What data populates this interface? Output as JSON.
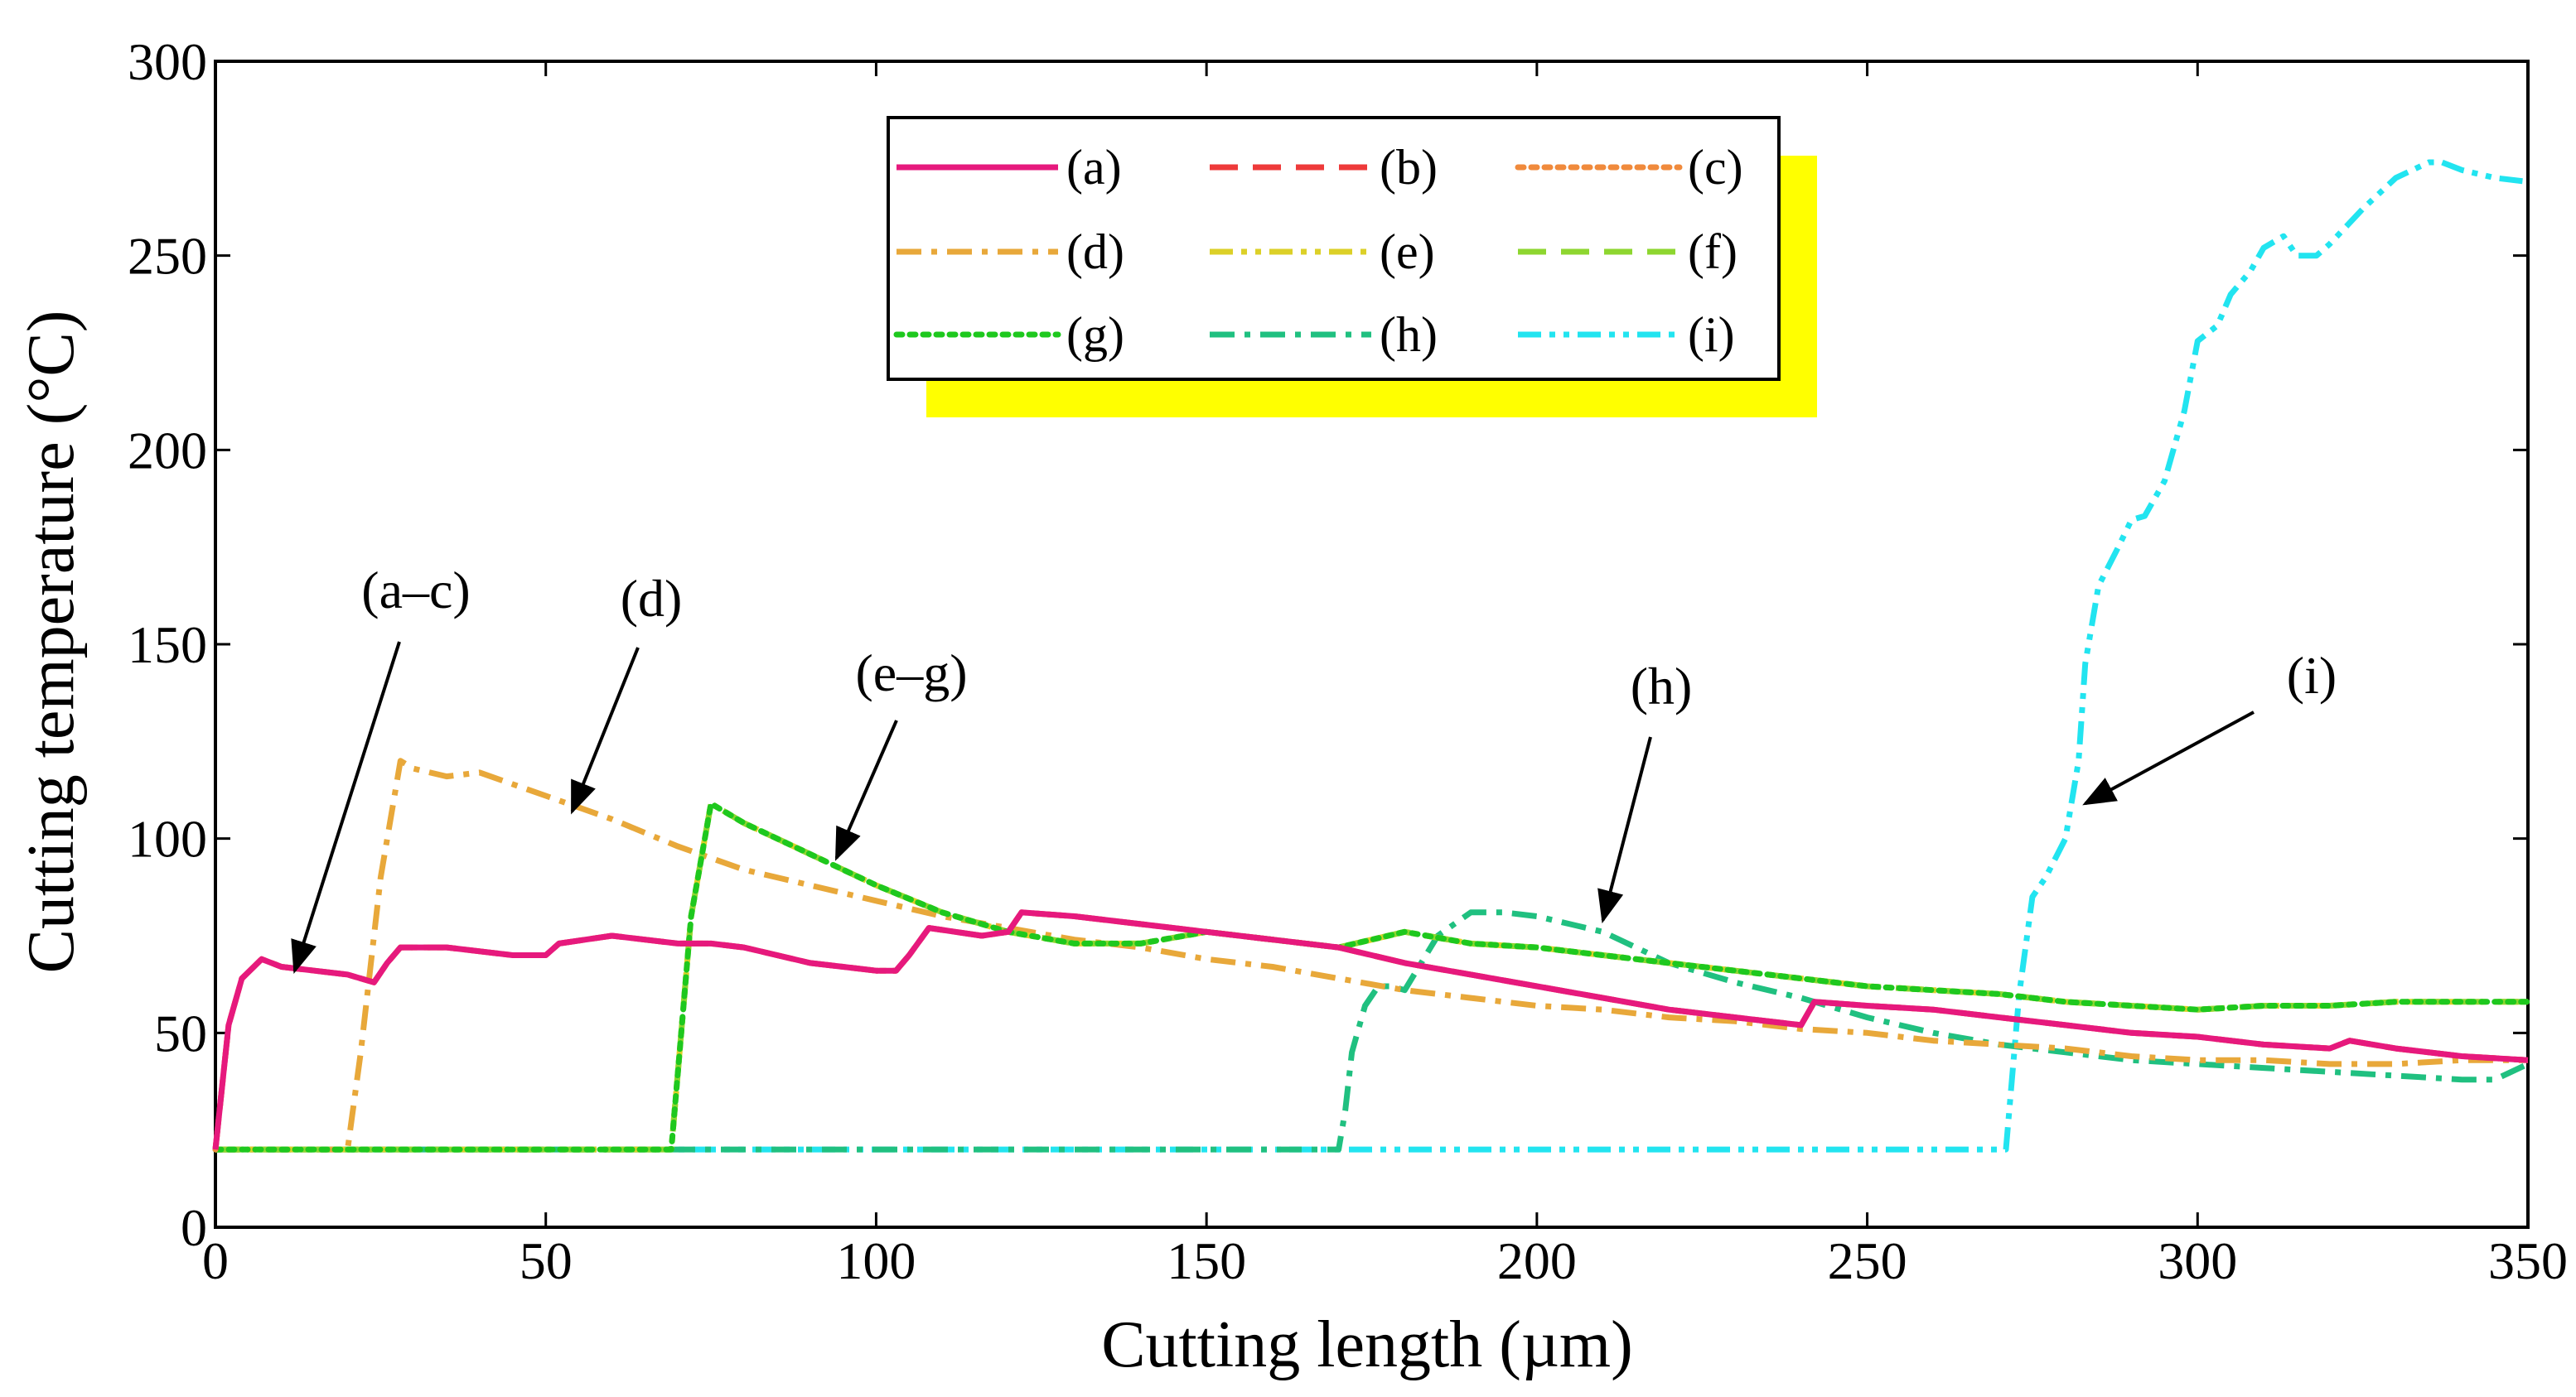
{
  "chart_data": {
    "type": "line",
    "title": "",
    "xlabel": "Cutting length (µm)",
    "ylabel": "Cutting temperature (°C)",
    "xlim": [
      0,
      350
    ],
    "ylim": [
      0,
      300
    ],
    "xticks": [
      "0",
      "50",
      "100",
      "150",
      "200",
      "250",
      "300",
      "350"
    ],
    "yticks": [
      "0",
      "50",
      "100",
      "150",
      "200",
      "250",
      "300"
    ],
    "grid": false,
    "legend_position": "top-center",
    "series": [
      {
        "name": "(a)",
        "color": "#e6197d",
        "style": "solid",
        "x": [
          0,
          2,
          4,
          7,
          10,
          15,
          20,
          24,
          26,
          28,
          35,
          40,
          45,
          50,
          52,
          56,
          60,
          65,
          70,
          75,
          80,
          85,
          90,
          95,
          100,
          103,
          105,
          108,
          112,
          116,
          120,
          122,
          130,
          140,
          150,
          160,
          170,
          180,
          190,
          200,
          210,
          220,
          230,
          240,
          242,
          250,
          260,
          270,
          280,
          290,
          300,
          310,
          320,
          323,
          330,
          340,
          350
        ],
        "y": [
          20,
          52,
          64,
          69,
          67,
          66,
          65,
          63,
          68,
          72,
          72,
          71,
          70,
          70,
          73,
          74,
          75,
          74,
          73,
          73,
          72,
          70,
          68,
          67,
          66,
          66,
          70,
          77,
          76,
          75,
          76,
          81,
          80,
          78,
          76,
          74,
          72,
          68,
          65,
          62,
          59,
          56,
          54,
          52,
          58,
          57,
          56,
          54,
          52,
          50,
          49,
          47,
          46,
          48,
          46,
          44,
          43
        ]
      },
      {
        "name": "(b)",
        "color": "#ee3a3a",
        "style": "dash",
        "x": [
          0,
          2,
          4,
          7,
          10,
          15,
          20,
          24,
          26,
          28,
          35,
          40,
          45,
          50,
          52,
          56,
          60,
          65,
          70,
          75,
          80,
          85,
          90,
          95,
          100,
          103,
          105,
          108,
          112,
          116,
          120,
          122,
          130,
          140,
          150,
          160,
          170,
          180,
          190,
          200,
          210,
          220,
          230,
          240,
          242,
          250,
          260,
          270,
          280,
          290,
          300,
          310,
          320,
          323,
          330,
          340,
          350
        ],
        "y": [
          20,
          52,
          64,
          69,
          67,
          66,
          65,
          63,
          68,
          72,
          72,
          71,
          70,
          70,
          73,
          74,
          75,
          74,
          73,
          73,
          72,
          70,
          68,
          67,
          66,
          66,
          70,
          77,
          76,
          75,
          76,
          81,
          80,
          78,
          76,
          74,
          72,
          68,
          65,
          62,
          59,
          56,
          54,
          52,
          58,
          57,
          56,
          54,
          52,
          50,
          49,
          47,
          46,
          48,
          46,
          44,
          43
        ]
      },
      {
        "name": "(c)",
        "color": "#f08a3c",
        "style": "dot",
        "x": [
          0,
          2,
          4,
          7,
          10,
          15,
          20,
          24,
          26,
          28,
          35,
          40,
          45,
          50,
          52,
          56,
          60,
          65,
          70,
          75,
          80,
          85,
          90,
          95,
          100,
          103,
          105,
          108,
          112,
          116,
          120,
          122,
          130,
          140,
          150,
          160,
          170,
          180,
          190,
          200,
          210,
          220,
          230,
          240,
          242,
          250,
          260,
          270,
          280,
          290,
          300,
          310,
          320,
          323,
          330,
          340,
          350
        ],
        "y": [
          20,
          52,
          64,
          69,
          67,
          66,
          65,
          63,
          68,
          72,
          72,
          71,
          70,
          70,
          73,
          74,
          75,
          74,
          73,
          73,
          72,
          70,
          68,
          67,
          66,
          66,
          70,
          77,
          76,
          75,
          76,
          81,
          80,
          78,
          76,
          74,
          72,
          68,
          65,
          62,
          59,
          56,
          54,
          52,
          58,
          57,
          56,
          54,
          52,
          50,
          49,
          47,
          46,
          48,
          46,
          44,
          43
        ]
      },
      {
        "name": "(d)",
        "color": "#e8a83a",
        "style": "dashdot",
        "x": [
          0,
          20,
          22,
          25,
          28,
          30,
          35,
          40,
          45,
          50,
          55,
          60,
          70,
          80,
          90,
          100,
          110,
          120,
          130,
          140,
          150,
          160,
          170,
          180,
          190,
          200,
          210,
          220,
          230,
          240,
          250,
          260,
          270,
          280,
          290,
          300,
          310,
          320,
          330,
          340,
          350
        ],
        "y": [
          20,
          20,
          45,
          90,
          120,
          118,
          116,
          117,
          114,
          111,
          108,
          105,
          98,
          92,
          88,
          84,
          80,
          77,
          74,
          72,
          69,
          67,
          64,
          61,
          59,
          57,
          56,
          54,
          53,
          51,
          50,
          48,
          47,
          46,
          44,
          43,
          43,
          42,
          42,
          43,
          43
        ]
      },
      {
        "name": "(e)",
        "color": "#dcd028",
        "style": "dashdotdot",
        "x": [
          0,
          69,
          70,
          72,
          75,
          80,
          90,
          100,
          110,
          120,
          130,
          140,
          150,
          160,
          170,
          180,
          190,
          200,
          210,
          220,
          230,
          240,
          250,
          260,
          270,
          280,
          290,
          300,
          310,
          320,
          330,
          340,
          350
        ],
        "y": [
          20,
          20,
          40,
          80,
          109,
          104,
          96,
          88,
          81,
          76,
          73,
          73,
          76,
          74,
          72,
          76,
          73,
          72,
          70,
          68,
          66,
          64,
          62,
          61,
          60,
          58,
          57,
          56,
          57,
          57,
          58,
          58,
          58
        ]
      },
      {
        "name": "(f)",
        "color": "#8ed630",
        "style": "dash",
        "x": [
          0,
          69,
          70,
          72,
          75,
          80,
          90,
          100,
          110,
          120,
          130,
          140,
          150,
          160,
          170,
          180,
          190,
          200,
          210,
          220,
          230,
          240,
          250,
          260,
          270,
          280,
          290,
          300,
          310,
          320,
          330,
          340,
          350
        ],
        "y": [
          20,
          20,
          40,
          80,
          109,
          104,
          96,
          88,
          81,
          76,
          73,
          73,
          76,
          74,
          72,
          76,
          73,
          72,
          70,
          68,
          66,
          64,
          62,
          61,
          60,
          58,
          57,
          56,
          57,
          57,
          58,
          58,
          58
        ]
      },
      {
        "name": "(g)",
        "color": "#1ec81e",
        "style": "dot",
        "x": [
          0,
          69,
          70,
          72,
          75,
          80,
          90,
          100,
          110,
          120,
          130,
          140,
          150,
          160,
          170,
          180,
          190,
          200,
          210,
          220,
          230,
          240,
          250,
          260,
          270,
          280,
          290,
          300,
          310,
          320,
          330,
          340,
          350
        ],
        "y": [
          20,
          20,
          40,
          80,
          109,
          104,
          96,
          88,
          81,
          76,
          73,
          73,
          76,
          74,
          72,
          76,
          73,
          72,
          70,
          68,
          66,
          64,
          62,
          61,
          60,
          58,
          57,
          56,
          57,
          57,
          58,
          58,
          58
        ]
      },
      {
        "name": "(h)",
        "color": "#20c080",
        "style": "dashdot",
        "x": [
          0,
          170,
          171,
          172,
          174,
          176,
          178,
          180,
          185,
          190,
          195,
          200,
          205,
          210,
          215,
          220,
          230,
          240,
          250,
          260,
          270,
          280,
          290,
          300,
          310,
          320,
          330,
          340,
          345,
          350
        ],
        "y": [
          20,
          20,
          30,
          45,
          57,
          62,
          62,
          61,
          75,
          81,
          81,
          80,
          78,
          76,
          72,
          68,
          63,
          59,
          54,
          50,
          47,
          45,
          43,
          42,
          41,
          40,
          39,
          38,
          38,
          42
        ]
      },
      {
        "name": "(i)",
        "color": "#22e4f0",
        "style": "dashdotdot",
        "x": [
          0,
          271,
          272,
          273,
          275,
          277,
          280,
          282,
          283,
          285,
          288,
          290,
          292,
          295,
          298,
          300,
          303,
          305,
          308,
          310,
          313,
          315,
          318,
          320,
          325,
          330,
          335,
          337,
          340,
          345,
          350
        ],
        "y": [
          20,
          20,
          40,
          60,
          85,
          90,
          100,
          120,
          145,
          165,
          175,
          182,
          183,
          192,
          210,
          228,
          232,
          240,
          246,
          252,
          255,
          250,
          250,
          253,
          262,
          270,
          274,
          274,
          272,
          270,
          269
        ]
      }
    ],
    "annotations": [
      {
        "text": "(a–c)",
        "target": [
          12,
          66
        ]
      },
      {
        "text": "(d)",
        "target": [
          54,
          107
        ]
      },
      {
        "text": "(e–g)",
        "target": [
          94,
          95
        ]
      },
      {
        "text": "(h)",
        "target": [
          210,
          79
        ]
      },
      {
        "text": "(i)",
        "target": [
          283,
          109
        ]
      }
    ]
  }
}
